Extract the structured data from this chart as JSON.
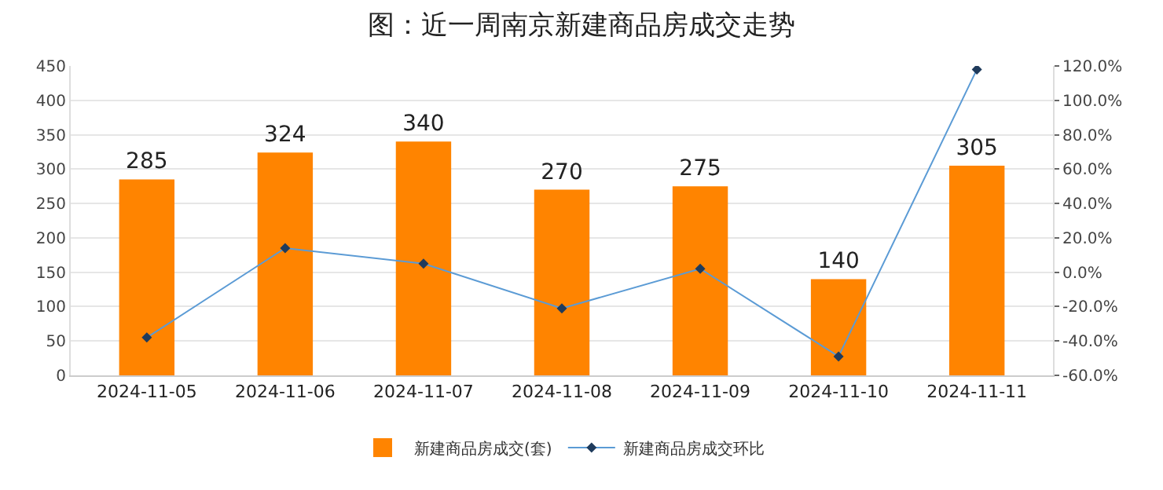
{
  "chart_data": {
    "type": "bar",
    "title": "图：近一周南京新建商品房成交走势",
    "categories": [
      "2024-11-05",
      "2024-11-06",
      "2024-11-07",
      "2024-11-08",
      "2024-11-09",
      "2024-11-10",
      "2024-11-11"
    ],
    "series": [
      {
        "name": "新建商品房成交(套)",
        "color": "#ff8400",
        "values": [
          285,
          324,
          340,
          270,
          275,
          140,
          305
        ],
        "data_labels": true
      },
      {
        "name": "新建商品房成交环比",
        "type": "line",
        "axis": "y2",
        "color": "#5b9bd5",
        "values": [
          -38,
          14,
          5,
          -21,
          2,
          -49,
          118
        ],
        "marker": "diamond"
      }
    ],
    "ylim": [
      0,
      450
    ],
    "yticks": [
      0,
      50,
      100,
      150,
      200,
      250,
      300,
      350,
      400,
      450
    ],
    "y2lim": [
      -60,
      120
    ],
    "y2ticks": [
      {
        "value": -60,
        "label": "-60.0%"
      },
      {
        "value": -40,
        "label": "-40.0%"
      },
      {
        "value": -20,
        "label": "-20.0%"
      },
      {
        "value": 0,
        "label": "0.0%"
      },
      {
        "value": 20,
        "label": "20.0%"
      },
      {
        "value": 40,
        "label": "40.0%"
      },
      {
        "value": 60,
        "label": "60.0%"
      },
      {
        "value": 80,
        "label": "80.0%"
      },
      {
        "value": 100,
        "label": "100.0%"
      },
      {
        "value": 120,
        "label": "120.0%"
      }
    ],
    "grid": "y",
    "legend": "bottom"
  }
}
